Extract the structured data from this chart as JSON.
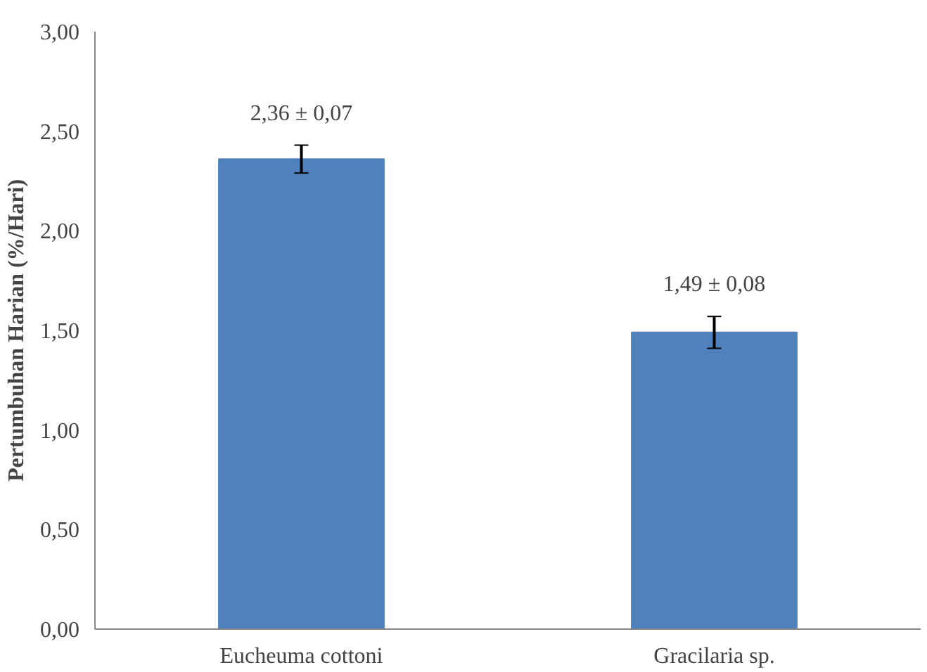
{
  "chart_data": {
    "type": "bar",
    "ylabel": "Pertumbuhan Harian (%/Hari)",
    "categories": [
      "Eucheuma cottoni",
      "Gracilaria sp."
    ],
    "values": [
      2.36,
      1.49
    ],
    "errors": [
      0.07,
      0.08
    ],
    "value_labels": [
      "2,36 ± 0,07",
      "1,49 ± 0,08"
    ],
    "color": "#4f81bd",
    "ylim": [
      0,
      3
    ],
    "yticks": [
      {
        "value": 0,
        "label": "0,00"
      },
      {
        "value": 0.5,
        "label": "0,50"
      },
      {
        "value": 1,
        "label": "1,00"
      },
      {
        "value": 1.5,
        "label": "1,50"
      },
      {
        "value": 2,
        "label": "2,00"
      },
      {
        "value": 2.5,
        "label": "2,50"
      },
      {
        "value": 3,
        "label": "3,00"
      }
    ],
    "grid": false
  }
}
